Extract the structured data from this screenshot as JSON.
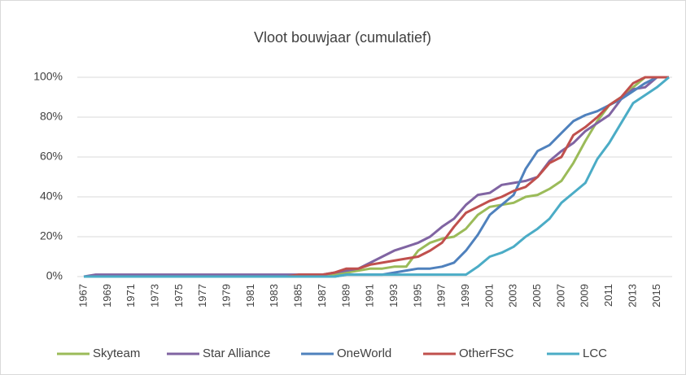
{
  "chart_data": {
    "type": "line",
    "title": "Vloot bouwjaar (cumulatief)",
    "categories": [
      "1967",
      null,
      "1969",
      null,
      "1971",
      null,
      "1973",
      null,
      "1975",
      null,
      "1977",
      null,
      "1979",
      null,
      "1981",
      null,
      "1983",
      null,
      "1985",
      null,
      "1987",
      null,
      "1989",
      null,
      "1991",
      null,
      "1993",
      null,
      "1995",
      null,
      "1997",
      null,
      "1999",
      null,
      "2001",
      null,
      "2003",
      null,
      "2005",
      null,
      "2007",
      null,
      "2009",
      null,
      "2011",
      null,
      "2013",
      null,
      "2015",
      null
    ],
    "series": [
      {
        "name": "Skyteam",
        "color": "#9bbb59",
        "values": [
          0,
          0,
          0,
          0,
          0,
          0,
          0,
          0,
          0,
          0,
          0,
          0,
          0,
          0,
          0,
          0,
          0,
          0,
          0,
          0,
          0,
          1,
          2,
          3,
          4,
          4,
          5,
          5,
          13,
          17,
          19,
          20,
          24,
          31,
          35,
          36,
          37,
          40,
          41,
          44,
          48,
          57,
          68,
          78,
          86,
          90,
          95,
          100,
          100,
          100
        ]
      },
      {
        "name": "Star Alliance",
        "color": "#8064a2",
        "values": [
          0,
          1,
          1,
          1,
          1,
          1,
          1,
          1,
          1,
          1,
          1,
          1,
          1,
          1,
          1,
          1,
          1,
          1,
          1,
          1,
          1,
          2,
          3,
          4,
          7,
          10,
          13,
          15,
          17,
          20,
          25,
          29,
          36,
          41,
          42,
          46,
          47,
          48,
          50,
          58,
          63,
          67,
          73,
          77,
          81,
          89,
          94,
          95,
          100,
          100
        ]
      },
      {
        "name": "OneWorld",
        "color": "#4f81bd",
        "values": [
          0,
          0,
          0,
          0,
          0,
          0,
          0,
          0,
          0,
          0,
          0,
          0,
          0,
          0,
          0,
          0,
          0,
          0,
          0,
          0,
          0,
          0,
          1,
          1,
          1,
          1,
          2,
          3,
          4,
          4,
          5,
          7,
          13,
          21,
          31,
          36,
          41,
          54,
          63,
          66,
          72,
          78,
          81,
          83,
          86,
          89,
          93,
          97,
          100,
          100
        ]
      },
      {
        "name": "OtherFSC",
        "color": "#c0504d",
        "values": [
          0,
          0,
          0,
          0,
          0,
          0,
          0,
          0,
          0,
          0,
          0,
          0,
          0,
          0,
          0,
          0,
          0,
          0,
          1,
          1,
          1,
          2,
          4,
          4,
          6,
          7,
          8,
          9,
          10,
          13,
          17,
          25,
          32,
          35,
          38,
          40,
          43,
          45,
          50,
          57,
          60,
          71,
          75,
          80,
          86,
          90,
          97,
          100,
          100,
          100
        ]
      },
      {
        "name": "LCC",
        "color": "#4bacc6",
        "values": [
          0,
          0,
          0,
          0,
          0,
          0,
          0,
          0,
          0,
          0,
          0,
          0,
          0,
          0,
          0,
          0,
          0,
          0,
          0,
          0,
          0,
          0,
          1,
          1,
          1,
          1,
          1,
          1,
          1,
          1,
          1,
          1,
          1,
          5,
          10,
          12,
          15,
          20,
          24,
          29,
          37,
          42,
          47,
          59,
          67,
          77,
          87,
          91,
          95,
          100
        ]
      }
    ],
    "ylim": [
      0,
      100
    ],
    "yticks": [
      {
        "value": 0,
        "label": "0%"
      },
      {
        "value": 20,
        "label": "20%"
      },
      {
        "value": 40,
        "label": "40%"
      },
      {
        "value": 60,
        "label": "60%"
      },
      {
        "value": 80,
        "label": "80%"
      },
      {
        "value": 100,
        "label": "100%"
      }
    ],
    "grid": true,
    "legend": "bottom"
  }
}
